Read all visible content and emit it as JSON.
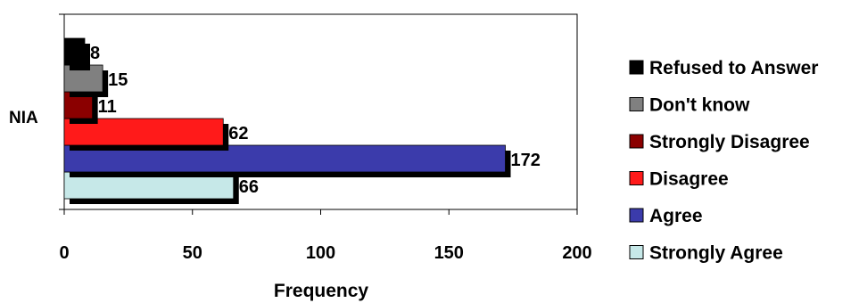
{
  "chart_data": {
    "type": "bar",
    "orientation": "horizontal",
    "category": "NIA",
    "xlabel": "Frequency",
    "ylabel": "",
    "xlim": [
      0,
      200
    ],
    "xticks": [
      0,
      50,
      100,
      150,
      200
    ],
    "grid": false,
    "legend_position": "right",
    "series": [
      {
        "name": "Strongly Agree",
        "value": 66,
        "color": "#c6e8e8"
      },
      {
        "name": "Agree",
        "value": 172,
        "color": "#3b3bab"
      },
      {
        "name": "Disagree",
        "value": 62,
        "color": "#ff1a1a"
      },
      {
        "name": "Strongly Disagree",
        "value": 11,
        "color": "#8b0000"
      },
      {
        "name": "Don't know",
        "value": 15,
        "color": "#808080"
      },
      {
        "name": "Refused to Answer",
        "value": 8,
        "color": "#000000"
      }
    ],
    "legend_order": [
      "Refused to Answer",
      "Don't know",
      "Strongly Disagree",
      "Disagree",
      "Agree",
      "Strongly Agree"
    ]
  }
}
